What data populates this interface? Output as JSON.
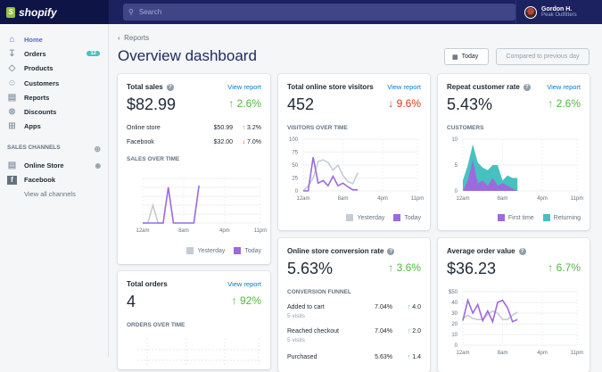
{
  "topbar": {
    "brand": "shopify",
    "search_placeholder": "Search",
    "user": {
      "name": "Gordon H.",
      "store": "Peak Outfitters"
    }
  },
  "sidebar": {
    "items": [
      {
        "label": "Home",
        "icon": "home-icon",
        "active": true
      },
      {
        "label": "Orders",
        "icon": "orders-icon",
        "badge": "12"
      },
      {
        "label": "Products",
        "icon": "tag-icon"
      },
      {
        "label": "Customers",
        "icon": "person-icon"
      },
      {
        "label": "Reports",
        "icon": "bar-chart-icon"
      },
      {
        "label": "Discounts",
        "icon": "discount-icon"
      },
      {
        "label": "Apps",
        "icon": "apps-icon"
      }
    ],
    "channels_heading": "SALES CHANNELS",
    "channels": [
      {
        "label": "Online Store",
        "icon": "store-icon"
      },
      {
        "label": "Facebook",
        "icon": "facebook-icon"
      }
    ],
    "view_all": "View all channels"
  },
  "header": {
    "breadcrumb": "Reports",
    "title": "Overview dashboard",
    "date_button": "Today",
    "compare_button": "Compared to previous day"
  },
  "cards": {
    "total_sales": {
      "title": "Total sales",
      "link": "View report",
      "value": "$82.99",
      "change": "2.6%",
      "rows": [
        {
          "label": "Online store",
          "value": "$50.99",
          "change": "3.2%",
          "dir": "up"
        },
        {
          "label": "Facebook",
          "value": "$32.00",
          "change": "7.0%",
          "dir": "down"
        }
      ],
      "chart_title": "SALES OVER TIME"
    },
    "visitors": {
      "title": "Total online store visitors",
      "link": "View report",
      "value": "452",
      "change": "9.6%",
      "chart_title": "VISITORS OVER TIME"
    },
    "repeat": {
      "title": "Repeat customer rate",
      "link": "View report",
      "value": "5.43%",
      "change": "2.6%",
      "chart_title": "CUSTOMERS"
    },
    "orders": {
      "title": "Total orders",
      "link": "View report",
      "value": "4",
      "change": "92%",
      "chart_title": "ORDERS OVER TIME"
    },
    "conversion": {
      "title": "Online store conversion rate",
      "value": "5.63%",
      "change": "3.6%",
      "chart_title": "CONVERSION FUNNEL",
      "rows": [
        {
          "label": "Added to cart",
          "sub": "5 visits",
          "value": "7.04%",
          "change": "4.0"
        },
        {
          "label": "Reached checkout",
          "sub": "5 visits",
          "value": "7.04%",
          "change": "2.0"
        },
        {
          "label": "Purchased",
          "sub": "",
          "value": "5.63%",
          "change": "1.4"
        }
      ]
    },
    "aov": {
      "title": "Average order value",
      "value": "$36.23",
      "change": "6.7%"
    }
  },
  "colors": {
    "today": "#9c6ade",
    "yesterday": "#c4cdd5",
    "returning": "#47c1bf",
    "up": "#50b83c",
    "down": "#de3618",
    "link": "#007ace"
  },
  "chart_data": [
    {
      "type": "line",
      "id": "sales",
      "x_ticks": [
        "12am",
        "8am",
        "4pm",
        "11pm"
      ],
      "series": [
        {
          "name": "Yesterday",
          "x": [
            0,
            1,
            2,
            3,
            4
          ],
          "y": [
            0,
            0,
            2,
            0,
            0
          ]
        },
        {
          "name": "Today",
          "x": [
            0,
            1,
            2,
            3,
            4,
            5,
            6,
            7,
            8,
            9,
            10,
            11
          ],
          "y": [
            0,
            0,
            0,
            0,
            0,
            4,
            0,
            0,
            0,
            0,
            0,
            4.2
          ]
        }
      ],
      "ylim": [
        0,
        5
      ]
    },
    {
      "type": "line",
      "id": "visitors",
      "y_ticks": [
        "100",
        "75",
        "50",
        "25",
        "0"
      ],
      "x_ticks": [
        "12am",
        "8am",
        "4pm",
        "11pm"
      ],
      "ylim": [
        0,
        100
      ],
      "series": [
        {
          "name": "Yesterday",
          "x": [
            0,
            1,
            2,
            3,
            4,
            5,
            6,
            7,
            8,
            9,
            10,
            11
          ],
          "y": [
            0,
            10,
            25,
            57,
            60,
            55,
            40,
            50,
            30,
            18,
            14,
            35
          ]
        },
        {
          "name": "Today",
          "x": [
            0,
            1,
            2,
            3,
            4,
            5,
            6,
            7,
            8,
            9,
            10,
            11
          ],
          "y": [
            0,
            0,
            65,
            15,
            20,
            10,
            28,
            10,
            15,
            8,
            2,
            2
          ]
        }
      ]
    },
    {
      "type": "area",
      "id": "customers",
      "y_ticks": [
        "10",
        "5",
        "0"
      ],
      "x_ticks": [
        "12am",
        "8am",
        "4pm",
        "11pm"
      ],
      "ylim": [
        0,
        10
      ],
      "series": [
        {
          "name": "First time",
          "x": [
            0,
            1,
            2,
            3,
            4,
            5,
            6,
            7,
            8,
            9,
            10,
            11
          ],
          "y": [
            0,
            2,
            6,
            1.5,
            2,
            1,
            2.5,
            1,
            1.5,
            1,
            0.5,
            0
          ]
        },
        {
          "name": "Returning",
          "x": [
            0,
            1,
            2,
            3,
            4,
            5,
            6,
            7,
            8,
            9,
            10,
            11
          ],
          "y": [
            2,
            5,
            9,
            5.5,
            4.5,
            4,
            5,
            5,
            2,
            3,
            2.5,
            2.5
          ]
        }
      ]
    },
    {
      "type": "line",
      "id": "aov",
      "y_ticks": [
        "$50",
        "40",
        "30",
        "20",
        "10",
        "0"
      ],
      "x_ticks": [
        "12am",
        "8am",
        "4pm",
        "11pm"
      ],
      "ylim": [
        0,
        50
      ],
      "series": [
        {
          "name": "Yesterday",
          "x": [
            0,
            1,
            2,
            3,
            4,
            5,
            6,
            7,
            8,
            9,
            10,
            11
          ],
          "y": [
            25,
            28,
            25,
            24,
            24,
            29,
            32,
            30,
            24,
            24,
            28,
            31
          ]
        },
        {
          "name": "Today",
          "x": [
            0,
            1,
            2,
            3,
            4,
            5,
            6,
            7,
            8,
            9,
            10,
            11
          ],
          "y": [
            23,
            42,
            30,
            38,
            23,
            32,
            22,
            40,
            42,
            35,
            22,
            24
          ]
        }
      ]
    }
  ]
}
